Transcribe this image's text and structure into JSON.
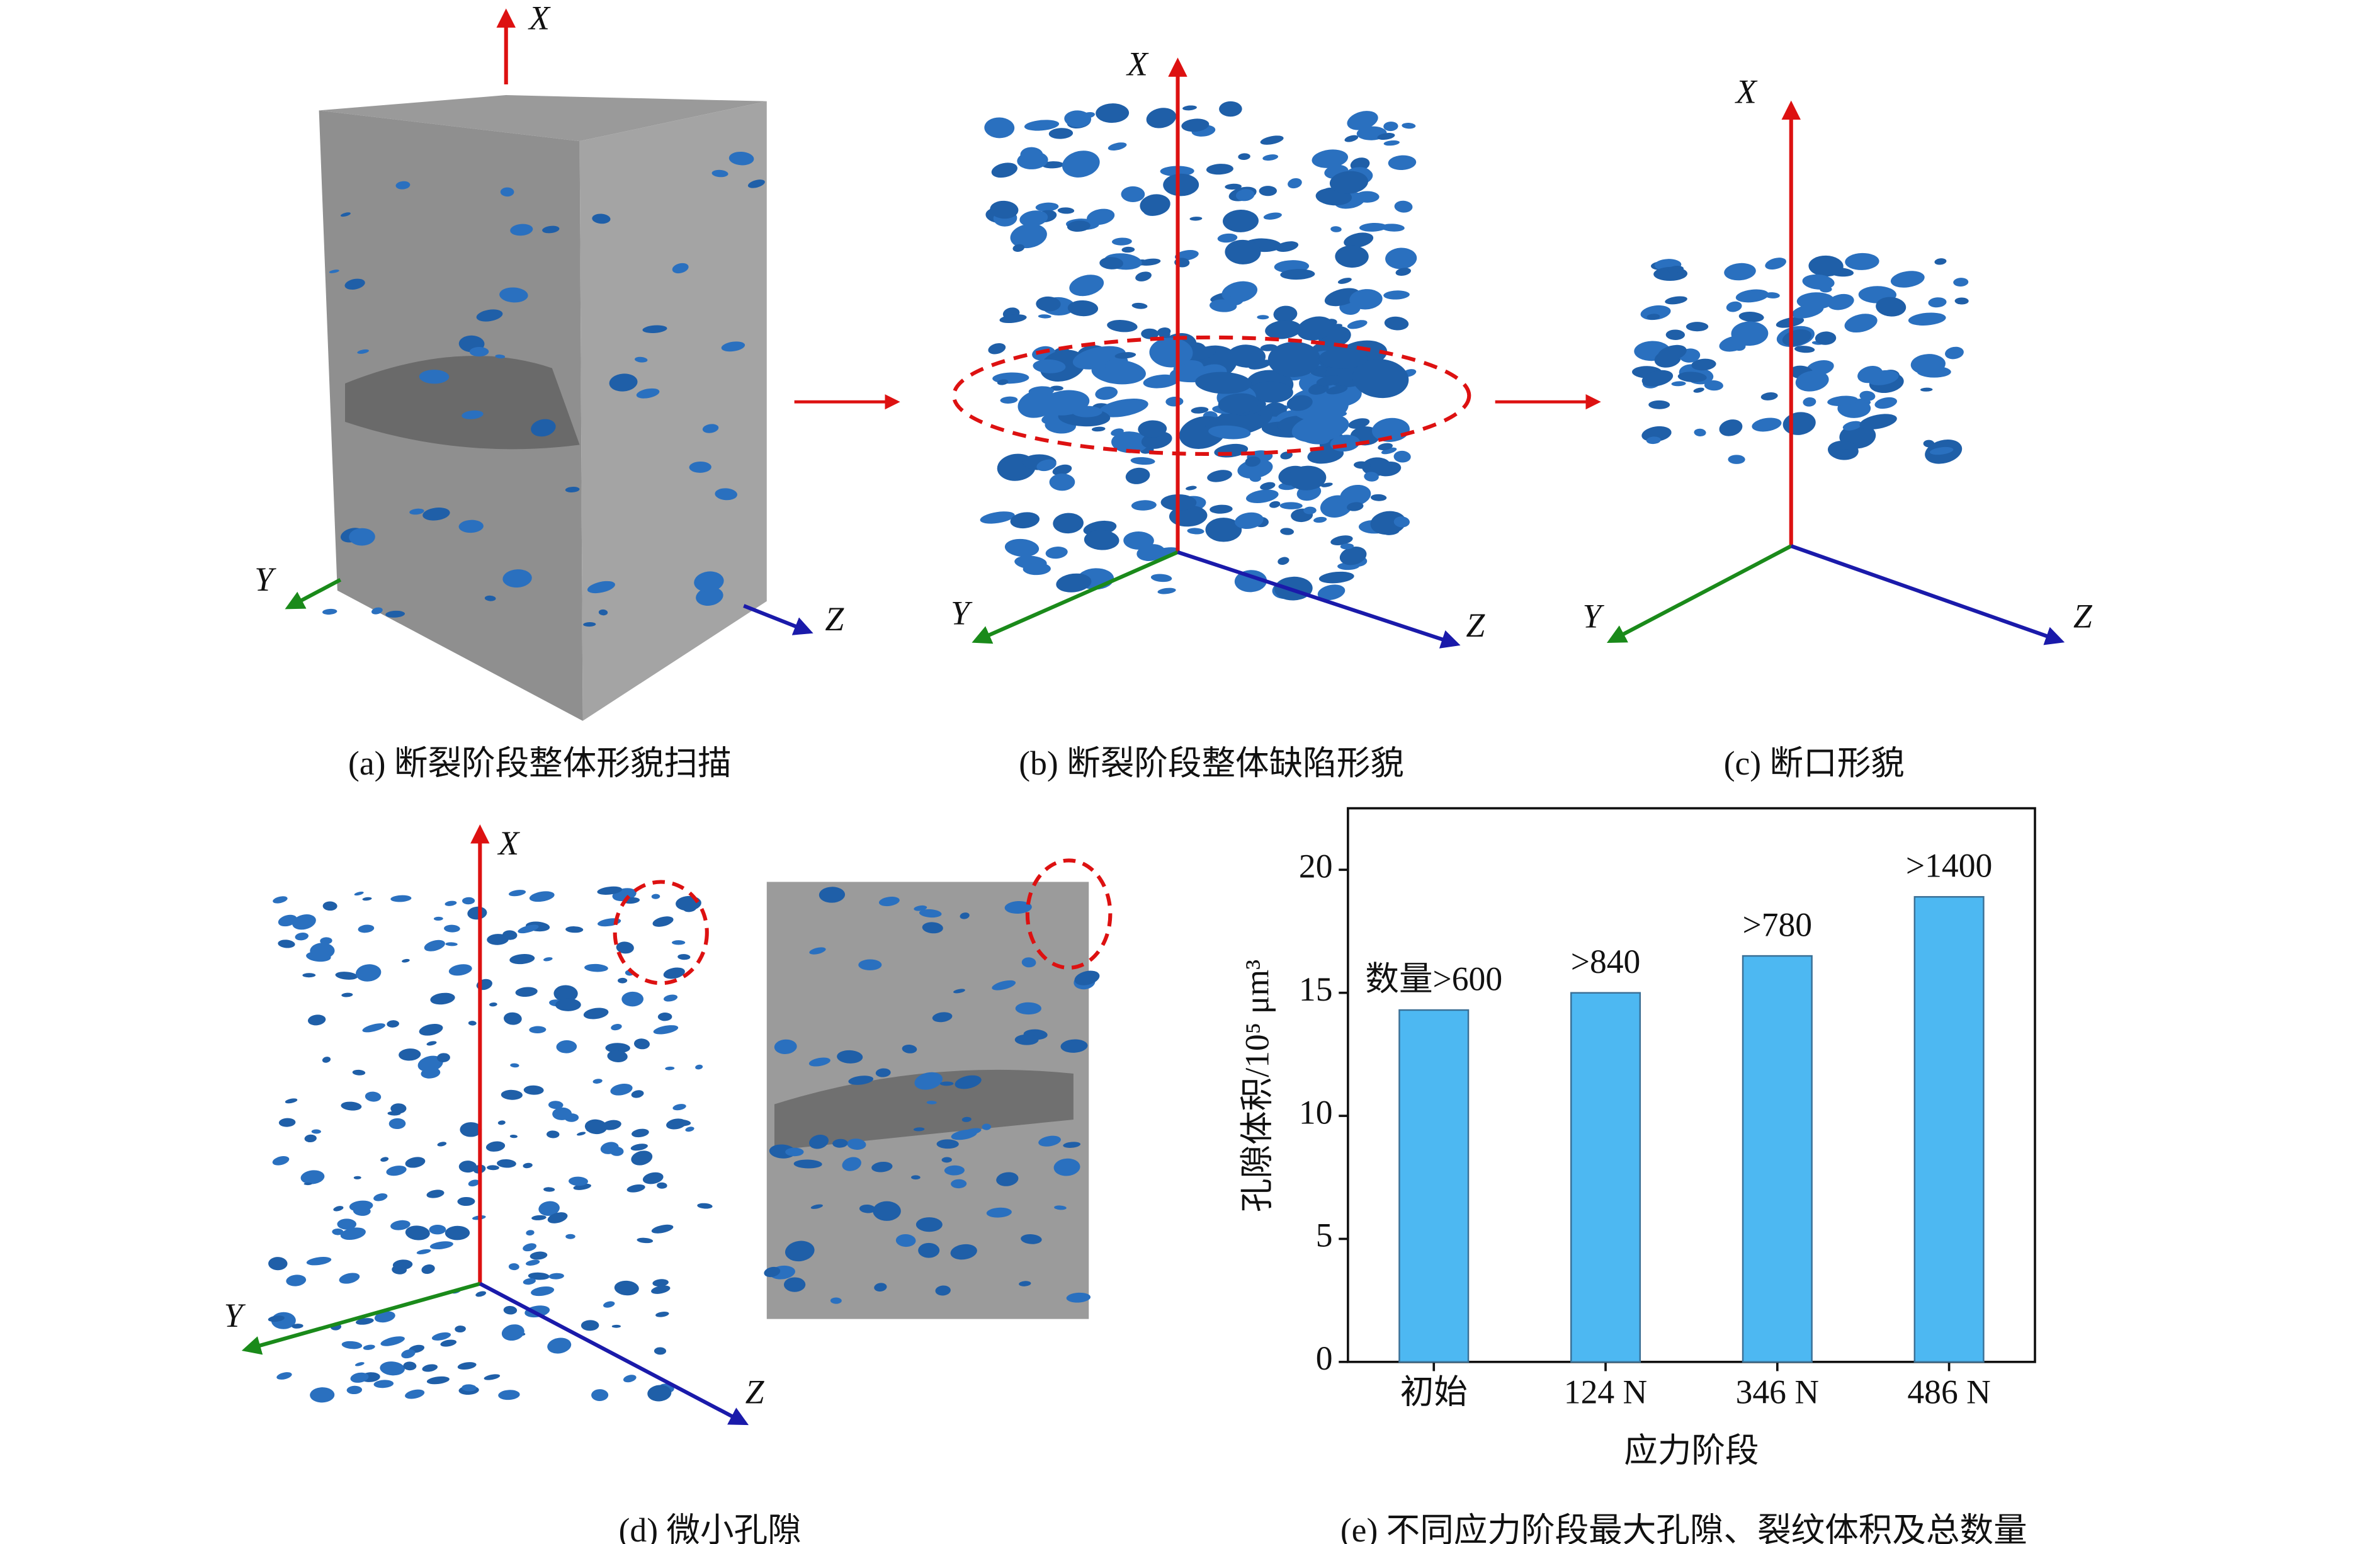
{
  "axis_labels": {
    "x": "X",
    "y": "Y",
    "z": "Z"
  },
  "captions": [
    "(a) 断裂阶段整体形貌扫描",
    "(b) 断裂阶段整体缺陷形貌",
    "(c) 断口形貌",
    "(d) 微小孔隙",
    "(e) 不同应力阶段最大孔隙、裂纹体积及总数量"
  ],
  "chart_data": {
    "type": "bar",
    "xlabel": "应力阶段",
    "ylabel": "孔隙体积/10⁵ μm³",
    "categories": [
      "初始",
      "124 N",
      "346 N",
      "486 N"
    ],
    "values": [
      14.3,
      15.0,
      16.5,
      18.9
    ],
    "annotations": [
      "数量>600",
      ">840",
      ">780",
      ">1400"
    ],
    "color": "#4db8f2",
    "ylim": [
      0,
      22.5
    ],
    "yticks": [
      0,
      5,
      10,
      15,
      20
    ]
  }
}
